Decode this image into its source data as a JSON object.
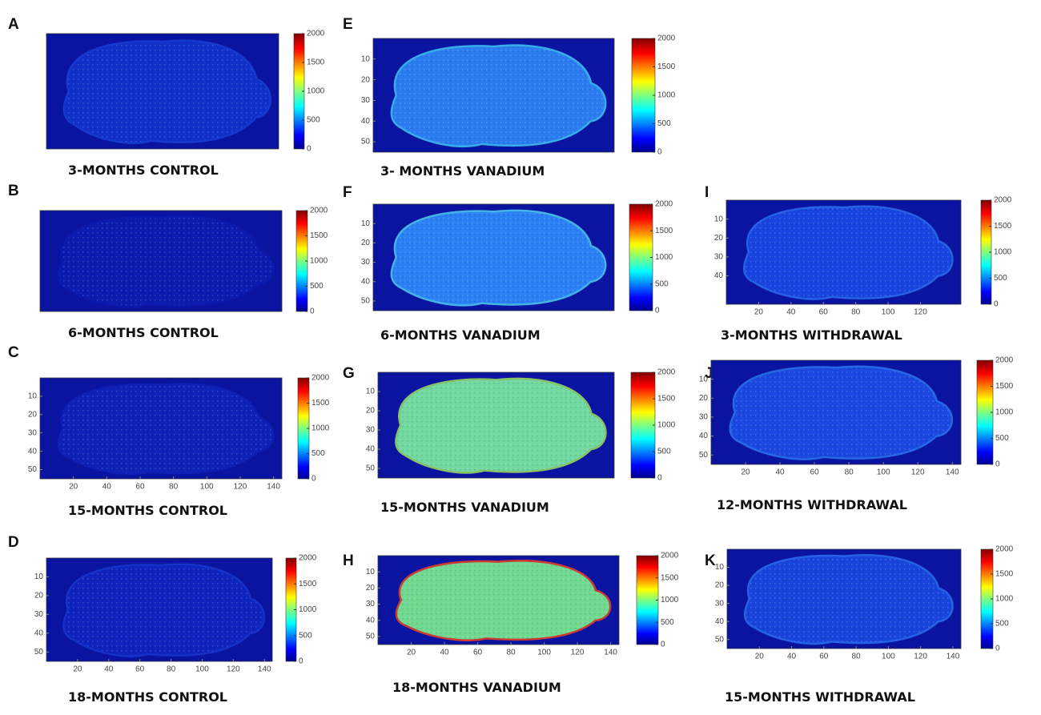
{
  "panels": [
    {
      "letter": "A",
      "caption": "3-MONTHS CONTROL",
      "colorbar_ticks": [
        0,
        500,
        1000,
        1500,
        2000
      ],
      "yticks": [],
      "xticks": []
    },
    {
      "letter": "B",
      "caption": "6-MONTHS CONTROL",
      "colorbar_ticks": [
        0,
        500,
        1000,
        1500,
        2000
      ],
      "yticks": [],
      "xticks": []
    },
    {
      "letter": "C",
      "caption": "15-MONTHS CONTROL",
      "colorbar_ticks": [
        0,
        500,
        1000,
        1500,
        2000
      ],
      "yticks": [
        10,
        20,
        30,
        40,
        50
      ],
      "xticks": [
        20,
        40,
        60,
        80,
        100,
        120,
        140
      ]
    },
    {
      "letter": "D",
      "caption": "18-MONTHS CONTROL",
      "colorbar_ticks": [
        0,
        500,
        1000,
        1500,
        2000
      ],
      "yticks": [
        10,
        20,
        30,
        40,
        50
      ],
      "xticks": [
        20,
        40,
        60,
        80,
        100,
        120,
        140
      ]
    },
    {
      "letter": "E",
      "caption": "3- MONTHS VANADIUM",
      "colorbar_ticks": [
        0,
        500,
        1000,
        1500,
        2000
      ],
      "yticks": [
        10,
        20,
        30,
        40,
        50
      ],
      "xticks": []
    },
    {
      "letter": "F",
      "caption": "6-MONTHS VANADIUM",
      "colorbar_ticks": [
        0,
        500,
        1000,
        1500,
        2000
      ],
      "yticks": [
        10,
        20,
        30,
        40,
        50
      ],
      "xticks": []
    },
    {
      "letter": "G",
      "caption": "15-MONTHS VANADIUM",
      "colorbar_ticks": [
        0,
        500,
        1000,
        1500,
        2000
      ],
      "yticks": [
        10,
        20,
        30,
        40,
        50
      ],
      "xticks": []
    },
    {
      "letter": "H",
      "caption": "18-MONTHS VANADIUM",
      "colorbar_ticks": [
        0,
        500,
        1000,
        1500,
        2000
      ],
      "yticks": [
        10,
        20,
        30,
        40,
        50
      ],
      "xticks": [
        20,
        40,
        60,
        80,
        100,
        120,
        140
      ]
    },
    {
      "letter": "I",
      "caption": "3-MONTHS WITHDRAWAL",
      "colorbar_ticks": [
        0,
        500,
        1000,
        1500,
        2000
      ],
      "yticks": [
        10,
        20,
        30,
        40
      ],
      "xticks": [
        20,
        40,
        60,
        80,
        100,
        120
      ]
    },
    {
      "letter": "J",
      "caption": "12-MONTHS WITHDRAWAL",
      "colorbar_ticks": [
        0,
        500,
        1000,
        1500,
        2000
      ],
      "yticks": [
        10,
        20,
        30,
        40,
        50
      ],
      "xticks": [
        20,
        40,
        60,
        80,
        100,
        120,
        140
      ]
    },
    {
      "letter": "K",
      "caption": "15-MONTHS WITHDRAWAL",
      "colorbar_ticks": [
        0,
        500,
        1000,
        1500,
        2000
      ],
      "yticks": [
        10,
        20,
        30,
        40,
        50
      ],
      "xticks": [
        20,
        40,
        60,
        80,
        100,
        120,
        140
      ]
    }
  ]
}
